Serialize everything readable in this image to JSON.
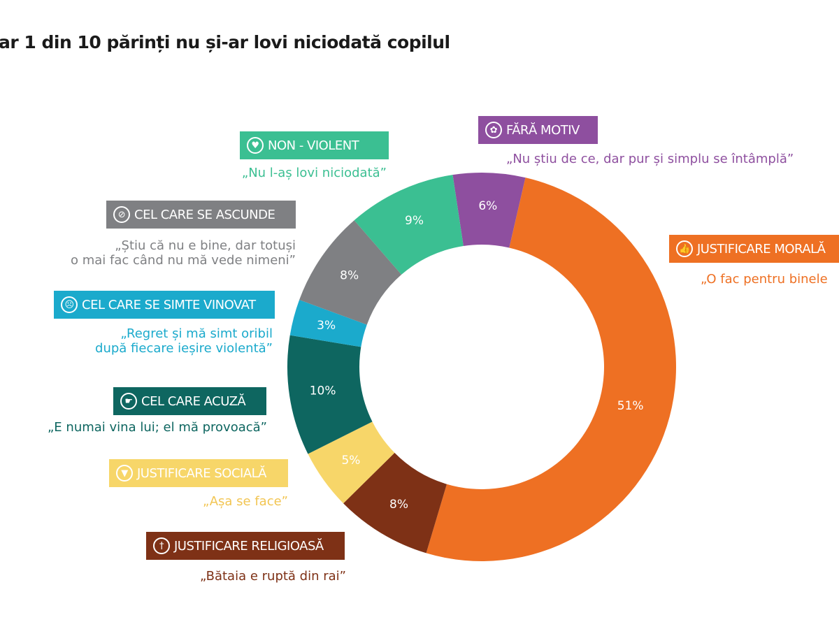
{
  "chart_data": {
    "type": "pie",
    "variant": "donut",
    "title": "ar 1 din 10 părinți nu și-ar lovi niciodată copilul",
    "legend": "labels-around",
    "slices": [
      {
        "name": "FĂRĂ MOTIV",
        "value": 6,
        "label": "6%",
        "quote": "„Nu știu de ce, dar pur și simplu se întâmplă”",
        "color": "#8E4F9F",
        "icon": "flower-icon"
      },
      {
        "name": "JUSTIFICARE MORALĂ",
        "value": 51,
        "label": "51%",
        "quote": "„O fac pentru binele",
        "color": "#EE7023",
        "icon": "thumbs-up-icon"
      },
      {
        "name": "JUSTIFICARE RELIGIOASĂ",
        "value": 8,
        "label": "8%",
        "quote": "„Bătaia e ruptă din rai”",
        "color": "#7E3116",
        "icon": "cross-icon"
      },
      {
        "name": "JUSTIFICARE SOCIALĂ",
        "value": 5,
        "label": "5%",
        "quote": "„Așa se face”",
        "color": "#F7D669",
        "icon": "triangle-down-icon"
      },
      {
        "name": "CEL CARE ACUZĂ",
        "value": 10,
        "label": "10%",
        "quote": "„E numai vina lui; el mă provoacă”",
        "color": "#0E6660",
        "icon": "pointing-hand-icon"
      },
      {
        "name": "CEL CARE SE SIMTE VINOVAT",
        "value": 3,
        "label": "3%",
        "quote": "„Regret și mă simt oribil|după fiecare ieșire violentă”",
        "color": "#1BAACC",
        "icon": "sad-face-icon"
      },
      {
        "name": "CEL CARE SE ASCUNDE",
        "value": 8,
        "label": "8%",
        "quote": "„Știu că nu e bine, dar totuși|o mai fac când nu mă vede nimeni”",
        "color": "#7F8083",
        "icon": "eye-slash-icon"
      },
      {
        "name": "NON - VIOLENT",
        "value": 9,
        "label": "9%",
        "quote": "„Nu l-aș lovi niciodată”",
        "color": "#3BBF92",
        "icon": "heart-icon"
      }
    ]
  }
}
